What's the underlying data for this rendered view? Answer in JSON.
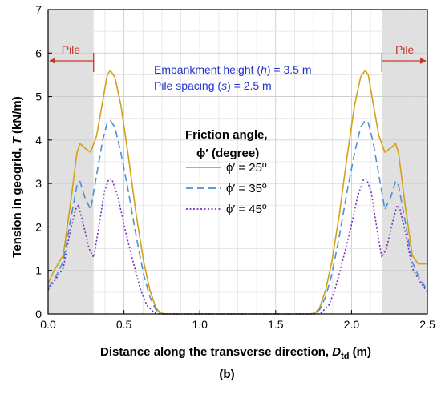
{
  "chart_data": {
    "type": "line",
    "xlabel": "Distance along the transverse direction, D",
    "xlabel_sub": "td",
    "xlabel_unit": " (m)",
    "ylabel": "Tension in geogrid, ",
    "ylabel_var": "T",
    "ylabel_unit": " (kN/m)",
    "xlim": [
      0.0,
      2.5
    ],
    "ylim": [
      0,
      7
    ],
    "xticks": [
      0.0,
      0.5,
      1.0,
      1.5,
      2.0,
      2.5
    ],
    "xtick_labels": [
      "0.0",
      "0.5",
      "1.0",
      "1.5",
      "2.0",
      "2.5"
    ],
    "yticks": [
      0,
      1,
      2,
      3,
      4,
      5,
      6,
      7
    ],
    "ytick_labels": [
      "0",
      "1",
      "2",
      "3",
      "4",
      "5",
      "6",
      "7"
    ],
    "grid": true,
    "caption": "(b)",
    "pile_regions": [
      {
        "label": "Pile",
        "x_range": [
          0.0,
          0.3
        ],
        "color": "#e0e0e0"
      },
      {
        "label": "Pile",
        "x_range": [
          2.2,
          2.5
        ],
        "color": "#e0e0e0"
      }
    ],
    "annotations": [
      "Embankment height (h) = 3.5 m",
      "Pile spacing (s) = 2.5 m"
    ],
    "legend": {
      "title_line1": "Friction angle,",
      "title_line2": "ϕ′ (degree)",
      "placement": "center-left"
    },
    "series": [
      {
        "name": "ϕ′ = 25º",
        "color": "#d4a017",
        "dash": "solid",
        "points": [
          [
            0.0,
            0.7
          ],
          [
            0.04,
            1.0
          ],
          [
            0.1,
            1.35
          ],
          [
            0.15,
            2.6
          ],
          [
            0.19,
            3.7
          ],
          [
            0.21,
            3.92
          ],
          [
            0.24,
            3.82
          ],
          [
            0.28,
            3.72
          ],
          [
            0.32,
            4.1
          ],
          [
            0.36,
            4.9
          ],
          [
            0.39,
            5.5
          ],
          [
            0.41,
            5.6
          ],
          [
            0.44,
            5.45
          ],
          [
            0.48,
            4.8
          ],
          [
            0.53,
            3.6
          ],
          [
            0.58,
            2.3
          ],
          [
            0.63,
            1.2
          ],
          [
            0.67,
            0.55
          ],
          [
            0.71,
            0.15
          ],
          [
            0.74,
            0.02
          ],
          [
            0.78,
            0.0
          ],
          [
            1.72,
            0.0
          ],
          [
            1.76,
            0.02
          ],
          [
            1.79,
            0.15
          ],
          [
            1.83,
            0.55
          ],
          [
            1.87,
            1.2
          ],
          [
            1.92,
            2.3
          ],
          [
            1.97,
            3.6
          ],
          [
            2.02,
            4.8
          ],
          [
            2.06,
            5.45
          ],
          [
            2.09,
            5.6
          ],
          [
            2.11,
            5.5
          ],
          [
            2.14,
            4.9
          ],
          [
            2.18,
            4.1
          ],
          [
            2.22,
            3.72
          ],
          [
            2.26,
            3.82
          ],
          [
            2.29,
            3.92
          ],
          [
            2.31,
            3.7
          ],
          [
            2.35,
            2.6
          ],
          [
            2.4,
            1.35
          ],
          [
            2.44,
            1.15
          ],
          [
            2.5,
            1.15
          ]
        ]
      },
      {
        "name": "ϕ′ = 35º",
        "color": "#4a8fd9",
        "dash": "dashed",
        "points": [
          [
            0.0,
            0.6
          ],
          [
            0.05,
            0.85
          ],
          [
            0.1,
            1.2
          ],
          [
            0.15,
            2.2
          ],
          [
            0.19,
            2.95
          ],
          [
            0.21,
            3.05
          ],
          [
            0.24,
            2.7
          ],
          [
            0.28,
            2.4
          ],
          [
            0.32,
            3.2
          ],
          [
            0.36,
            4.0
          ],
          [
            0.39,
            4.4
          ],
          [
            0.41,
            4.45
          ],
          [
            0.44,
            4.3
          ],
          [
            0.48,
            3.7
          ],
          [
            0.53,
            2.8
          ],
          [
            0.58,
            1.8
          ],
          [
            0.63,
            0.9
          ],
          [
            0.67,
            0.4
          ],
          [
            0.71,
            0.1
          ],
          [
            0.75,
            0.0
          ],
          [
            1.75,
            0.0
          ],
          [
            1.79,
            0.1
          ],
          [
            1.83,
            0.4
          ],
          [
            1.87,
            0.9
          ],
          [
            1.92,
            1.8
          ],
          [
            1.97,
            2.8
          ],
          [
            2.02,
            3.7
          ],
          [
            2.06,
            4.3
          ],
          [
            2.09,
            4.45
          ],
          [
            2.11,
            4.4
          ],
          [
            2.14,
            4.0
          ],
          [
            2.18,
            3.2
          ],
          [
            2.22,
            2.4
          ],
          [
            2.26,
            2.7
          ],
          [
            2.29,
            3.05
          ],
          [
            2.31,
            2.95
          ],
          [
            2.35,
            2.2
          ],
          [
            2.4,
            1.2
          ],
          [
            2.45,
            0.8
          ],
          [
            2.5,
            0.55
          ]
        ]
      },
      {
        "name": "ϕ′ = 45º",
        "color": "#7a2fc0",
        "dash": "dotted",
        "points": [
          [
            0.0,
            0.55
          ],
          [
            0.05,
            0.8
          ],
          [
            0.1,
            1.05
          ],
          [
            0.14,
            1.8
          ],
          [
            0.18,
            2.4
          ],
          [
            0.2,
            2.5
          ],
          [
            0.23,
            2.1
          ],
          [
            0.27,
            1.5
          ],
          [
            0.3,
            1.3
          ],
          [
            0.33,
            1.9
          ],
          [
            0.37,
            2.8
          ],
          [
            0.4,
            3.1
          ],
          [
            0.42,
            3.1
          ],
          [
            0.46,
            2.7
          ],
          [
            0.51,
            1.9
          ],
          [
            0.56,
            1.2
          ],
          [
            0.61,
            0.55
          ],
          [
            0.65,
            0.2
          ],
          [
            0.7,
            0.03
          ],
          [
            0.74,
            0.0
          ],
          [
            1.76,
            0.0
          ],
          [
            1.8,
            0.03
          ],
          [
            1.85,
            0.2
          ],
          [
            1.89,
            0.55
          ],
          [
            1.94,
            1.2
          ],
          [
            1.99,
            1.9
          ],
          [
            2.04,
            2.7
          ],
          [
            2.08,
            3.1
          ],
          [
            2.1,
            3.1
          ],
          [
            2.13,
            2.8
          ],
          [
            2.17,
            1.9
          ],
          [
            2.2,
            1.3
          ],
          [
            2.23,
            1.5
          ],
          [
            2.27,
            2.1
          ],
          [
            2.3,
            2.5
          ],
          [
            2.32,
            2.4
          ],
          [
            2.36,
            1.8
          ],
          [
            2.4,
            1.05
          ],
          [
            2.45,
            0.75
          ],
          [
            2.5,
            0.5
          ]
        ]
      }
    ]
  }
}
